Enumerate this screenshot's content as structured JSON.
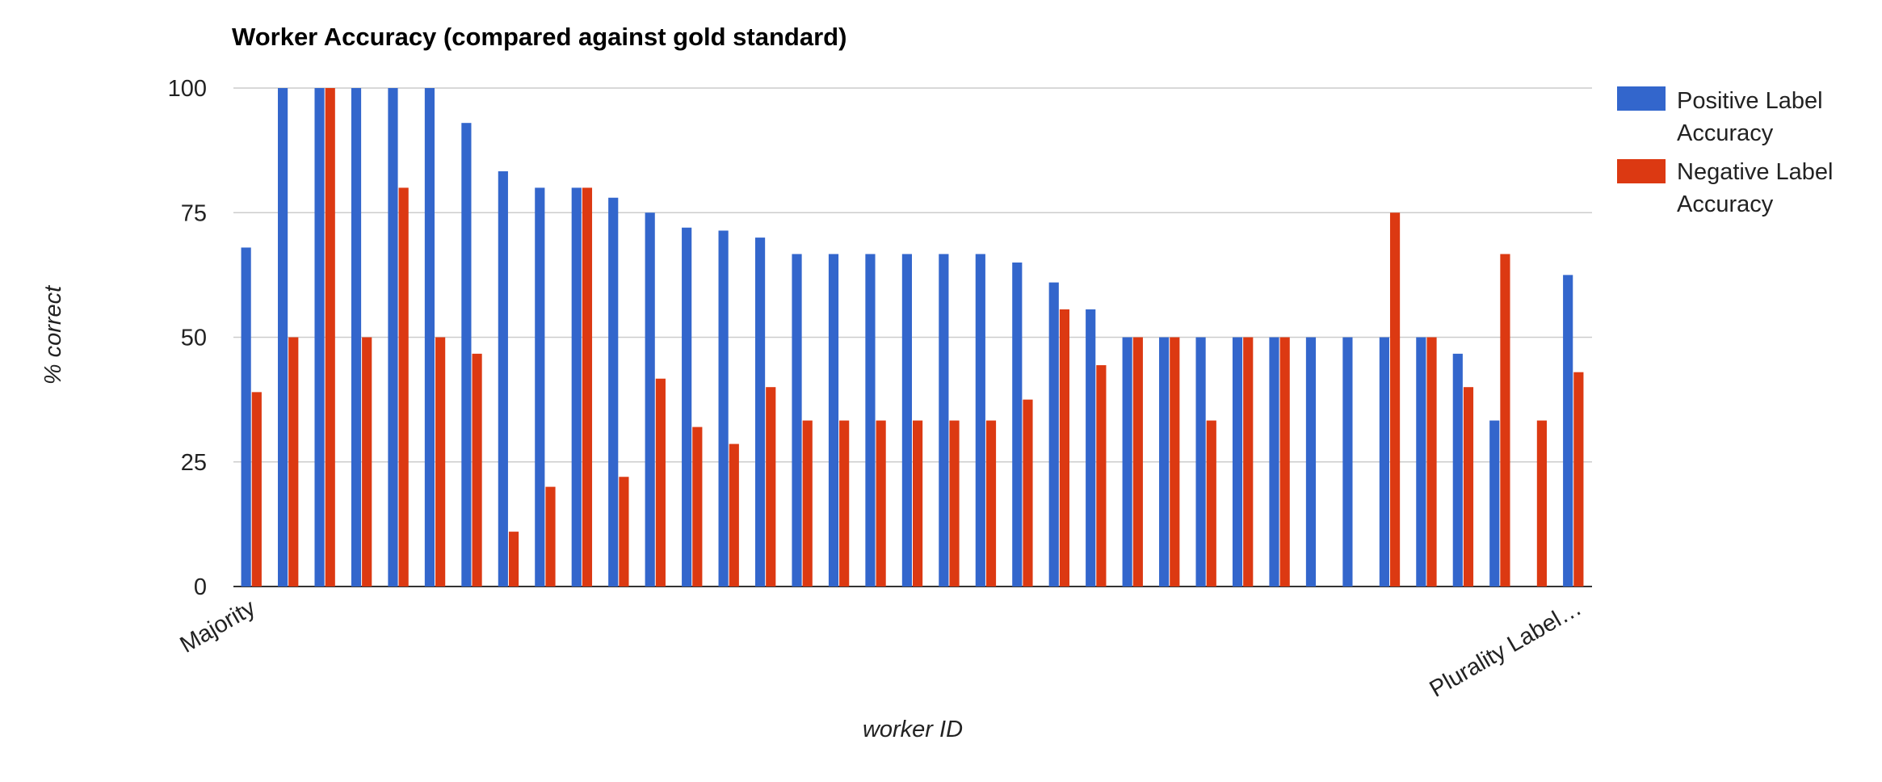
{
  "chart_data": {
    "type": "bar",
    "title": "Worker Accuracy (compared against gold standard)",
    "xlabel": "worker ID",
    "ylabel": "% correct",
    "ylim": [
      0,
      100
    ],
    "yticks": [
      "0",
      "25",
      "50",
      "75",
      "100"
    ],
    "xtick_labels": {
      "first": "Majority",
      "last": "Plurality Label…"
    },
    "grid": true,
    "legend_position": "right",
    "colors": {
      "positive": "#3366cc",
      "negative": "#dc3912",
      "grid": "#cccccc",
      "baseline": "#333333"
    },
    "series": [
      {
        "name": "Positive Label Accuracy",
        "values": [
          68,
          100,
          100,
          100,
          100,
          100,
          93,
          83.3,
          80,
          80,
          78,
          75,
          72,
          71.4,
          70,
          66.7,
          66.7,
          66.7,
          66.7,
          66.7,
          66.7,
          65,
          61,
          55.6,
          50,
          50,
          50,
          50,
          50,
          50,
          50,
          50,
          50,
          46.7,
          33.3,
          0,
          62.5
        ]
      },
      {
        "name": "Negative Label Accuracy",
        "values": [
          39,
          50,
          100,
          50,
          80,
          50,
          46.7,
          11,
          20,
          80,
          22,
          41.7,
          32,
          28.6,
          40,
          33.3,
          33.3,
          33.3,
          33.3,
          33.3,
          33.3,
          37.5,
          55.6,
          44.4,
          50,
          50,
          33.3,
          50,
          50,
          0,
          0,
          75,
          50,
          40,
          66.7,
          33.3,
          43
        ]
      }
    ]
  }
}
